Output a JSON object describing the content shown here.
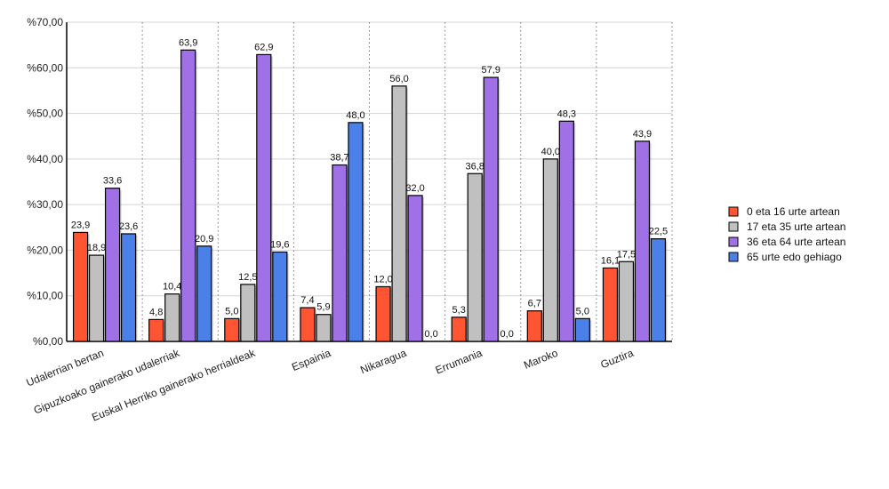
{
  "chart_data": {
    "type": "bar",
    "title": "",
    "xlabel": "",
    "ylabel": "",
    "ylim": [
      0,
      70
    ],
    "yticks": [
      "%0,00",
      "%10,00",
      "%20,00",
      "%30,00",
      "%40,00",
      "%50,00",
      "%60,00",
      "%70,00"
    ],
    "grid": true,
    "legend_position": "right",
    "categories": [
      "Udalerrian bertan",
      "Gipuzkoako gainerako udalerriak",
      "Euskal Herriko gainerako herrialdeak",
      "Espainia",
      "Nikaragua",
      "Errumania",
      "Maroko",
      "Guztira"
    ],
    "series": [
      {
        "name": "0 eta 16 urte artean",
        "color": "#ff5533",
        "values": [
          23.9,
          4.8,
          5.0,
          7.4,
          12.0,
          5.3,
          6.7,
          16.1
        ],
        "labels": [
          "23,9",
          "4,8",
          "5,0",
          "7,4",
          "12,0",
          "5,3",
          "6,7",
          "16,1"
        ]
      },
      {
        "name": "17 eta 35 urte artean",
        "color": "#c0c0c0",
        "values": [
          18.9,
          10.4,
          12.5,
          5.9,
          56.0,
          36.8,
          40.0,
          17.5
        ],
        "labels": [
          "18,9",
          "10,4",
          "12,5",
          "5,9",
          "56,0",
          "36,8",
          "40,0",
          "17,5"
        ]
      },
      {
        "name": "36 eta 64 urte artean",
        "color": "#a070e6",
        "values": [
          33.6,
          63.9,
          62.9,
          38.7,
          32.0,
          57.9,
          48.3,
          43.9
        ],
        "labels": [
          "33,6",
          "63,9",
          "62,9",
          "38,7",
          "32,0",
          "57,9",
          "48,3",
          "43,9"
        ]
      },
      {
        "name": "65 urte edo gehiago",
        "color": "#4a80e8",
        "values": [
          23.6,
          20.9,
          19.6,
          48.0,
          0.0,
          0.0,
          5.0,
          22.5
        ],
        "labels": [
          "23,6",
          "20,9",
          "19,6",
          "48,0",
          "0,0",
          "0,0",
          "5,0",
          "22,5"
        ]
      }
    ]
  }
}
